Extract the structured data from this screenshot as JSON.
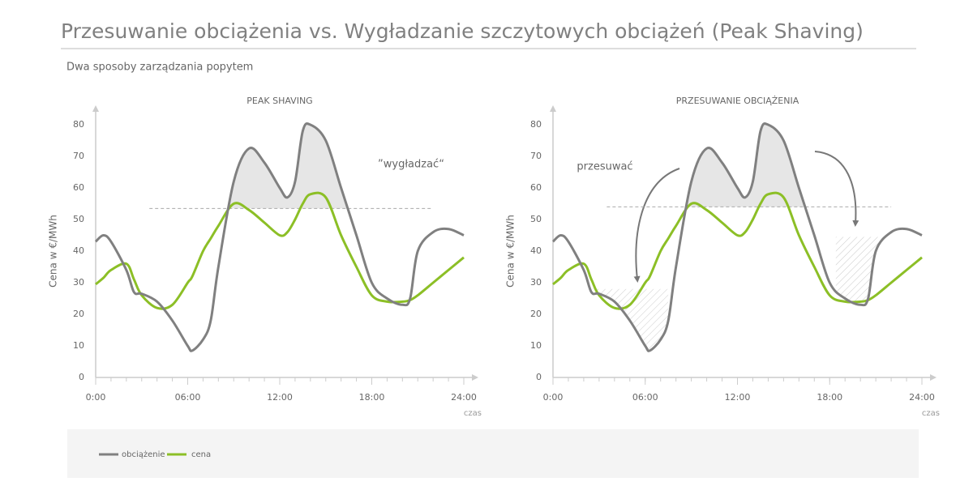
{
  "title": "Przesuwanie obciążenia vs. Wygładzanie szczytowych obciążeń (Peak Shaving)",
  "subtitle": "Dwa sposoby zarządzania popytem",
  "chart_data": [
    {
      "type": "line",
      "title": "PEAK SHAVING",
      "ylabel": "Cena w €/MWh",
      "xlabel": "czas",
      "x": [
        0,
        0.5,
        1,
        2,
        2.5,
        3,
        4,
        5,
        6,
        6.3,
        7,
        7.5,
        8,
        9,
        10,
        11,
        12,
        12.5,
        13,
        13.5,
        14,
        15,
        16,
        17,
        18,
        19,
        20,
        20.5,
        21,
        22,
        23,
        24
      ],
      "series": [
        {
          "name": "obciążenie",
          "color": "#808080",
          "values": [
            43,
            45,
            43,
            34,
            27,
            26.5,
            24,
            18,
            10,
            8.5,
            12,
            18,
            35,
            62,
            72.5,
            68,
            60,
            57,
            62,
            78,
            80,
            75,
            60,
            45,
            30,
            25,
            23,
            25,
            40,
            46,
            47,
            45
          ]
        },
        {
          "name": "cena",
          "color": "#8cbf26",
          "values": [
            29.5,
            31.5,
            34,
            36,
            31,
            26,
            22,
            23,
            30,
            32,
            40,
            44,
            48,
            55,
            53,
            49,
            45,
            46,
            50,
            55,
            58,
            57,
            45,
            35,
            26,
            24,
            24,
            24.5,
            26,
            30,
            34,
            38
          ]
        }
      ],
      "threshold": {
        "value": 53.5,
        "x": [
          3.5,
          22
        ]
      },
      "annotation": "”wygładzać“",
      "xlim": [
        0,
        24
      ],
      "ylim": [
        0,
        80
      ],
      "xticks": [
        {
          "value": 0,
          "label": "0:00"
        },
        {
          "value": 6,
          "label": "06:00"
        },
        {
          "value": 12,
          "label": "12:00"
        },
        {
          "value": 18,
          "label": "18:00"
        },
        {
          "value": 24,
          "label": "24:00"
        }
      ],
      "yticks": [
        0,
        10,
        20,
        30,
        40,
        50,
        60,
        70,
        80
      ]
    },
    {
      "type": "line",
      "title": "PRZESUWANIE OBCIĄŻENIA",
      "ylabel": "Cena w €/MWh",
      "xlabel": "czas",
      "x": [
        0,
        0.5,
        1,
        2,
        2.5,
        3,
        4,
        5,
        6,
        6.3,
        7,
        7.5,
        8,
        9,
        10,
        11,
        12,
        12.5,
        13,
        13.5,
        14,
        15,
        16,
        17,
        18,
        19,
        20,
        20.5,
        21,
        22,
        23,
        24
      ],
      "series": [
        {
          "name": "obciążenie",
          "color": "#808080",
          "values": [
            43,
            45,
            43,
            34,
            27,
            26.5,
            24,
            18,
            10,
            8.5,
            12,
            18,
            35,
            62,
            72.5,
            68,
            60,
            57,
            62,
            78,
            80,
            75,
            60,
            45,
            30,
            25,
            23,
            25,
            40,
            46,
            47,
            45
          ]
        },
        {
          "name": "cena",
          "color": "#8cbf26",
          "values": [
            29.5,
            31.5,
            34,
            36,
            31,
            26,
            22,
            23,
            30,
            32,
            40,
            44,
            48,
            55,
            53,
            49,
            45,
            46,
            50,
            55,
            58,
            57,
            45,
            35,
            26,
            24,
            24,
            24.5,
            26,
            30,
            34,
            38
          ]
        }
      ],
      "threshold": {
        "value": 54,
        "x": [
          3.5,
          22
        ]
      },
      "shifted_blocks": [
        {
          "x": [
            2.8,
            7.5
          ],
          "level": 28
        },
        {
          "x": [
            18.4,
            21.8
          ],
          "level": 44.5
        }
      ],
      "annotation": "przesuwać",
      "xlim": [
        0,
        24
      ],
      "ylim": [
        0,
        80
      ],
      "xticks": [
        {
          "value": 0,
          "label": "0:00"
        },
        {
          "value": 6,
          "label": "06:00"
        },
        {
          "value": 12,
          "label": "12:00"
        },
        {
          "value": 18,
          "label": "18:00"
        },
        {
          "value": 24,
          "label": "24:00"
        }
      ],
      "yticks": [
        0,
        10,
        20,
        30,
        40,
        50,
        60,
        70,
        80
      ]
    }
  ]
}
